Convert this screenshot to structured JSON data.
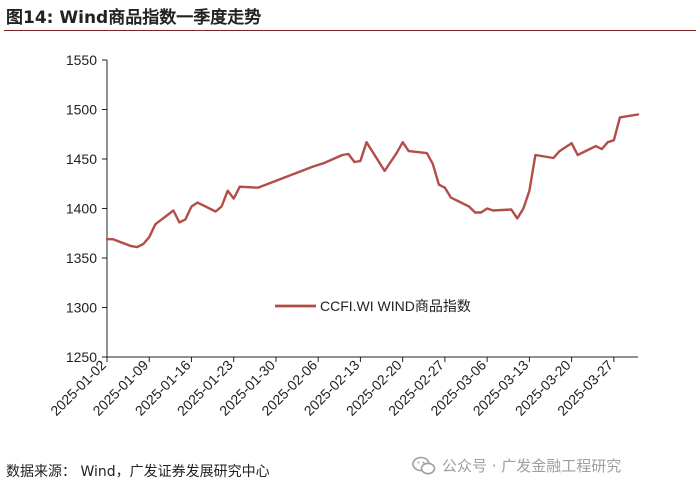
{
  "figure": {
    "title": "图14:  Wind商品指数一季度走势",
    "source": "数据来源：  Wind，广发证券发展研究中心",
    "watermark": "公众号 · 广发金融工程研究",
    "watermark_icon": "wechat-icon"
  },
  "colors": {
    "series": "#b24d48",
    "title_rule": "#7a2524",
    "axis": "#222222",
    "watermark": "#9aa0a6"
  },
  "chart_data": {
    "type": "line",
    "title": "",
    "xlabel": "",
    "ylabel": "",
    "grid": false,
    "legend_position": "center",
    "ylim": [
      1250,
      1550
    ],
    "yticks": [
      1250,
      1300,
      1350,
      1400,
      1450,
      1500,
      1550
    ],
    "xlim": [
      "2025-01-02",
      "2025-03-31"
    ],
    "xticks": [
      "2025-01-02",
      "2025-01-09",
      "2025-01-16",
      "2025-01-23",
      "2025-01-30",
      "2025-02-06",
      "2025-02-13",
      "2025-02-20",
      "2025-02-27",
      "2025-03-06",
      "2025-03-13",
      "2025-03-20",
      "2025-03-27"
    ],
    "series": [
      {
        "name": "CCFI.WI WIND商品指数",
        "points": [
          [
            "2025-01-02",
            1369
          ],
          [
            "2025-01-03",
            1369
          ],
          [
            "2025-01-06",
            1362
          ],
          [
            "2025-01-07",
            1361
          ],
          [
            "2025-01-08",
            1364
          ],
          [
            "2025-01-09",
            1371
          ],
          [
            "2025-01-10",
            1384
          ],
          [
            "2025-01-13",
            1398
          ],
          [
            "2025-01-14",
            1386
          ],
          [
            "2025-01-15",
            1389
          ],
          [
            "2025-01-16",
            1402
          ],
          [
            "2025-01-17",
            1406
          ],
          [
            "2025-01-20",
            1397
          ],
          [
            "2025-01-21",
            1402
          ],
          [
            "2025-01-22",
            1418
          ],
          [
            "2025-01-23",
            1410
          ],
          [
            "2025-01-24",
            1422
          ],
          [
            "2025-01-27",
            1421
          ],
          [
            "2025-02-05",
            1442
          ],
          [
            "2025-02-06",
            1444
          ],
          [
            "2025-02-07",
            1446
          ],
          [
            "2025-02-10",
            1454
          ],
          [
            "2025-02-11",
            1455
          ],
          [
            "2025-02-12",
            1447
          ],
          [
            "2025-02-13",
            1448
          ],
          [
            "2025-02-14",
            1467
          ],
          [
            "2025-02-17",
            1438
          ],
          [
            "2025-02-18",
            1447
          ],
          [
            "2025-02-19",
            1456
          ],
          [
            "2025-02-20",
            1467
          ],
          [
            "2025-02-21",
            1458
          ],
          [
            "2025-02-24",
            1456
          ],
          [
            "2025-02-25",
            1445
          ],
          [
            "2025-02-26",
            1424
          ],
          [
            "2025-02-27",
            1421
          ],
          [
            "2025-02-28",
            1411
          ],
          [
            "2025-03-03",
            1402
          ],
          [
            "2025-03-04",
            1396
          ],
          [
            "2025-03-05",
            1396
          ],
          [
            "2025-03-06",
            1400
          ],
          [
            "2025-03-07",
            1398
          ],
          [
            "2025-03-10",
            1399
          ],
          [
            "2025-03-11",
            1390
          ],
          [
            "2025-03-12",
            1400
          ],
          [
            "2025-03-13",
            1418
          ],
          [
            "2025-03-14",
            1454
          ],
          [
            "2025-03-17",
            1451
          ],
          [
            "2025-03-18",
            1458
          ],
          [
            "2025-03-19",
            1462
          ],
          [
            "2025-03-20",
            1466
          ],
          [
            "2025-03-21",
            1454
          ],
          [
            "2025-03-24",
            1463
          ],
          [
            "2025-03-25",
            1460
          ],
          [
            "2025-03-26",
            1467
          ],
          [
            "2025-03-27",
            1469
          ],
          [
            "2025-03-28",
            1492
          ],
          [
            "2025-03-31",
            1495
          ]
        ]
      }
    ]
  }
}
